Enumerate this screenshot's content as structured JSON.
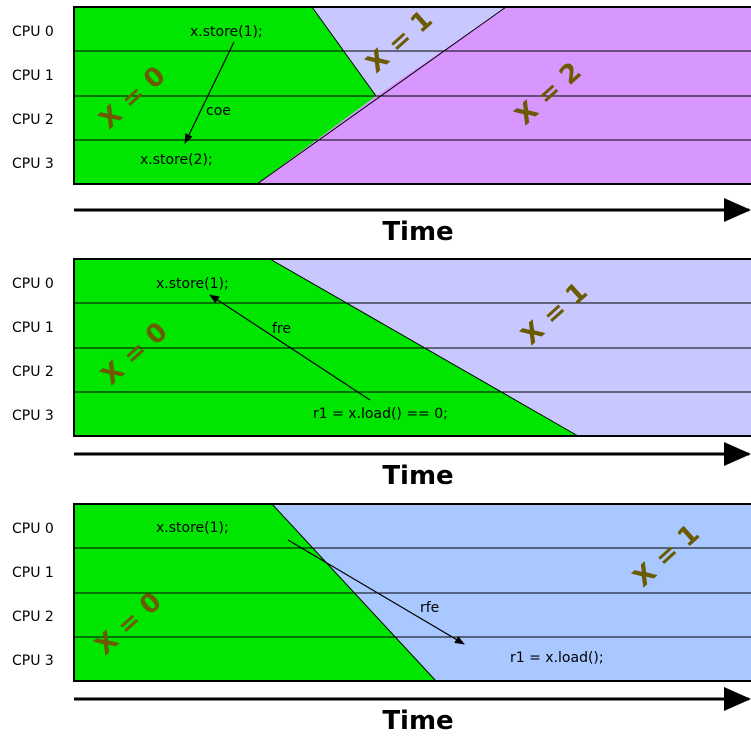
{
  "colors": {
    "green": "#00e600",
    "lavender": "#c8c8ff",
    "violet": "#d896ff",
    "blue": "#a8c8ff",
    "label_brown": "#6b5a00"
  },
  "panel1": {
    "cpus": [
      "CPU 0",
      "CPU 1",
      "CPU 2",
      "CPU 3"
    ],
    "store1": "x.store(1);",
    "store2": "x.store(2);",
    "edge": "coe",
    "region0": "X = 0",
    "region1": "X = 1",
    "region2": "X = 2",
    "time": "Time"
  },
  "panel2": {
    "cpus": [
      "CPU 0",
      "CPU 1",
      "CPU 2",
      "CPU 3"
    ],
    "store1": "x.store(1);",
    "load": "r1 = x.load() == 0;",
    "edge": "fre",
    "region0": "X = 0",
    "region1": "X = 1",
    "time": "Time"
  },
  "panel3": {
    "cpus": [
      "CPU 0",
      "CPU 1",
      "CPU 2",
      "CPU 3"
    ],
    "store1": "x.store(1);",
    "load": "r1 = x.load();",
    "edge": "rfe",
    "region0": "X = 0",
    "region1": "X = 1",
    "time": "Time"
  }
}
